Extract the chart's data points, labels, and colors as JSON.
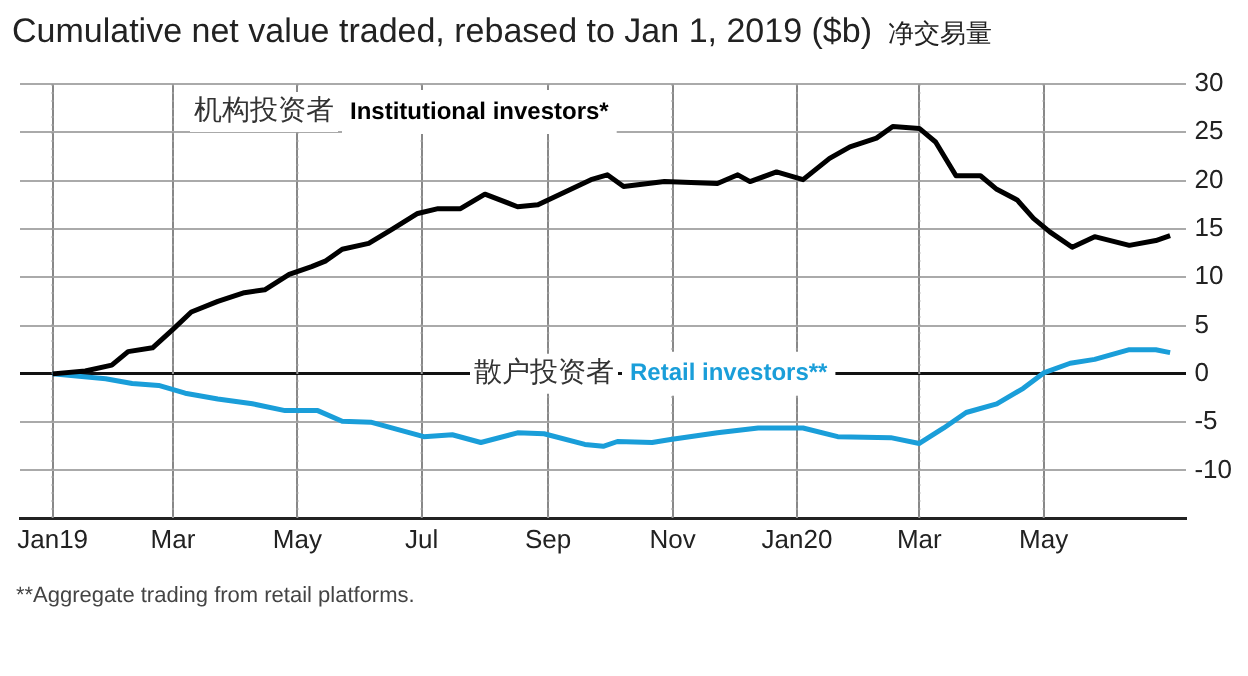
{
  "chart_data": {
    "type": "line",
    "title": "Cumulative net value traded, rebased to Jan 1, 2019 ($b)",
    "subtitle": "净交易量",
    "x": [
      "2019-01-01",
      "2019-01-17",
      "2019-01-30",
      "2019-02-07",
      "2019-02-19",
      "2019-03-01",
      "2019-03-10",
      "2019-03-23",
      "2019-04-05",
      "2019-04-15",
      "2019-04-27",
      "2019-05-08",
      "2019-05-15",
      "2019-05-23",
      "2019-06-05",
      "2019-06-16",
      "2019-06-29",
      "2019-07-09",
      "2019-07-20",
      "2019-08-01",
      "2019-08-17",
      "2019-08-27",
      "2019-09-09",
      "2019-09-22",
      "2019-09-30",
      "2019-10-08",
      "2019-10-28",
      "2019-11-23",
      "2019-12-03",
      "2019-12-09",
      "2019-12-22",
      "2020-01-04",
      "2020-01-17",
      "2020-01-27",
      "2020-02-09",
      "2020-02-17",
      "2020-03-01",
      "2020-03-09",
      "2020-03-19",
      "2020-03-31",
      "2020-04-08",
      "2020-04-18",
      "2020-04-26",
      "2020-05-04",
      "2020-05-15",
      "2020-05-26",
      "2020-06-12",
      "2020-06-25",
      "2020-07-02"
    ],
    "series": [
      {
        "name": "Institutional investors*",
        "color": "#000000",
        "values": [
          0,
          0.3,
          0.9,
          2.3,
          2.7,
          4.6,
          6.4,
          7.5,
          8.4,
          8.7,
          10.3,
          11.1,
          11.7,
          12.9,
          13.5,
          14.9,
          16.6,
          17.1,
          17.1,
          18.6,
          17.3,
          17.5,
          18.8,
          20.1,
          20.6,
          19.4,
          19.9,
          19.7,
          20.6,
          19.9,
          20.9,
          20.1,
          22.3,
          23.5,
          24.4,
          25.6,
          25.4,
          24.0,
          20.5,
          20.5,
          19.1,
          18.0,
          16.1,
          14.7,
          13.1,
          14.2,
          13.3,
          13.8,
          14.3
        ]
      },
      {
        "name": "Retail investors**",
        "color": "#1a9ed9",
        "x": [
          "2019-01-01",
          "2019-01-27",
          "2019-02-09",
          "2019-02-22",
          "2019-03-07",
          "2019-03-23",
          "2019-04-09",
          "2019-04-25",
          "2019-05-11",
          "2019-05-23",
          "2019-06-06",
          "2019-07-02",
          "2019-07-16",
          "2019-07-30",
          "2019-08-17",
          "2019-08-30",
          "2019-09-19",
          "2019-09-28",
          "2019-10-05",
          "2019-10-22",
          "2019-10-31",
          "2019-11-23",
          "2019-12-13",
          "2020-01-04",
          "2020-01-21",
          "2020-02-16",
          "2020-03-01",
          "2020-03-13",
          "2020-03-24",
          "2020-04-08",
          "2020-04-21",
          "2020-05-01",
          "2020-05-14",
          "2020-05-26",
          "2020-06-12",
          "2020-06-25",
          "2020-07-02"
        ],
        "values": [
          0,
          -0.5,
          -1.0,
          -1.2,
          -2.0,
          -2.6,
          -3.1,
          -3.8,
          -3.8,
          -4.9,
          -5.0,
          -6.5,
          -6.3,
          -7.1,
          -6.1,
          -6.2,
          -7.3,
          -7.5,
          -7.0,
          -7.1,
          -6.8,
          -6.1,
          -5.6,
          -5.6,
          -6.5,
          -6.6,
          -7.2,
          -5.6,
          -4.0,
          -3.1,
          -1.5,
          0.1,
          1.1,
          1.5,
          2.5,
          2.5,
          2.2
        ]
      }
    ],
    "xlim": [
      "2018-12-16",
      "2020-07-10"
    ],
    "xticks": [
      {
        "value": "2019-01-01",
        "label": "Jan19"
      },
      {
        "value": "2019-03-01",
        "label": "Mar"
      },
      {
        "value": "2019-05-01",
        "label": "May"
      },
      {
        "value": "2019-07-01",
        "label": "Jul"
      },
      {
        "value": "2019-09-01",
        "label": "Sep"
      },
      {
        "value": "2019-11-01",
        "label": "Nov"
      },
      {
        "value": "2020-01-01",
        "label": "Jan20"
      },
      {
        "value": "2020-03-01",
        "label": "Mar"
      },
      {
        "value": "2020-05-01",
        "label": "May"
      }
    ],
    "ylim": [
      -15,
      30
    ],
    "yticks": [
      -10,
      -5,
      0,
      5,
      10,
      15,
      20,
      25,
      30
    ],
    "grid": true,
    "legend": false,
    "marker": "none",
    "line_style": "solid",
    "annotations": [
      "机构投资者",
      "散户投资者",
      "**Aggregate trading from retail platforms."
    ]
  }
}
